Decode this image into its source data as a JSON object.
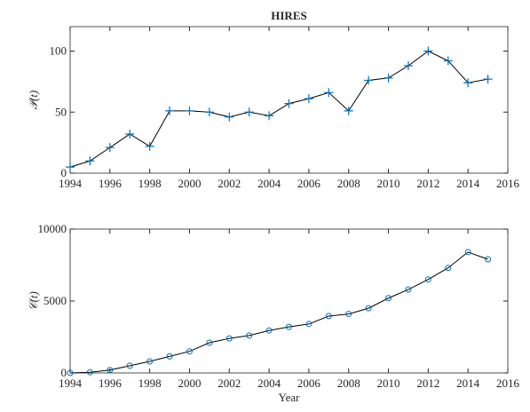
{
  "chart_data": [
    {
      "type": "line",
      "title": "HIRES",
      "ylabel": "𝒫(t)",
      "x": [
        1994,
        1995,
        1996,
        1997,
        1998,
        1999,
        2000,
        2001,
        2002,
        2003,
        2004,
        2005,
        2006,
        2007,
        2008,
        2009,
        2010,
        2011,
        2012,
        2013,
        2014,
        2015
      ],
      "series": [
        {
          "color": "#000000",
          "marker": "+",
          "marker_color": "#0072bd",
          "values": [
            5,
            10,
            21,
            32,
            22,
            51,
            51,
            50,
            46,
            50,
            47,
            57,
            61,
            66,
            51,
            76,
            78,
            88,
            100,
            92,
            74,
            77
          ]
        }
      ],
      "xlim": [
        1994,
        2016
      ],
      "xticks": [
        1994,
        1996,
        1998,
        2000,
        2002,
        2004,
        2006,
        2008,
        2010,
        2012,
        2014,
        2016
      ],
      "ylim": [
        0,
        120
      ],
      "yticks": [
        0,
        50,
        100
      ]
    },
    {
      "type": "line",
      "ylabel": "𝒞(t)",
      "xlabel": "Year",
      "x": [
        1994,
        1995,
        1996,
        1997,
        1998,
        1999,
        2000,
        2001,
        2002,
        2003,
        2004,
        2005,
        2006,
        2007,
        2008,
        2009,
        2010,
        2011,
        2012,
        2013,
        2014,
        2015
      ],
      "series": [
        {
          "color": "#000000",
          "marker": "o",
          "marker_color": "#0072bd",
          "values": [
            0,
            50,
            200,
            500,
            800,
            1150,
            1500,
            2100,
            2400,
            2600,
            2950,
            3200,
            3400,
            3950,
            4100,
            4500,
            5200,
            5800,
            6500,
            7300,
            8400,
            7900
          ]
        }
      ],
      "xlim": [
        1994,
        2016
      ],
      "xticks": [
        1994,
        1996,
        1998,
        2000,
        2002,
        2004,
        2006,
        2008,
        2010,
        2012,
        2014,
        2016
      ],
      "ylim": [
        0,
        10000
      ],
      "yticks": [
        0,
        5000,
        10000
      ]
    }
  ]
}
